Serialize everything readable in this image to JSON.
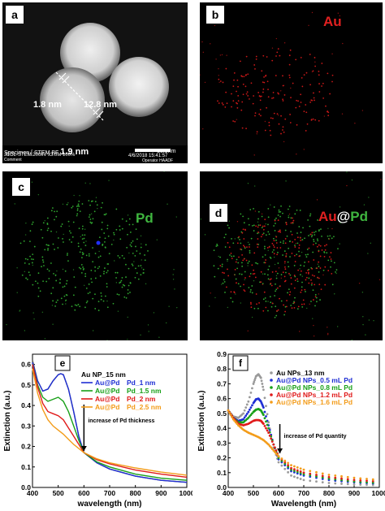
{
  "panel_a": {
    "label": "a",
    "measure_1": "1.8 nm",
    "measure_2": "12.8 nm",
    "measure_3": "1.9 nm",
    "info_line1": "Specimen [ STEM BF",
    "info_line2": "JEOL-STEM 200kV x3.0M 100%",
    "info_line3": "Comment",
    "scalebar": "10.0nm",
    "date": "4/6/2018 15:41:57",
    "operator": "Operator HAADF"
  },
  "panel_b": {
    "label": "b",
    "title": "Au",
    "color": "#e02020"
  },
  "panel_c": {
    "label": "c",
    "title": "Pd",
    "color": "#3fb53f"
  },
  "panel_d": {
    "label": "d",
    "title_au": "Au",
    "title_at": "@",
    "title_pd": "Pd"
  },
  "chart_data": [
    {
      "type": "line",
      "panel": "e",
      "xlabel": "wavelength (nm)",
      "ylabel": "Extinction (a.u.)",
      "xlim": [
        400,
        1000
      ],
      "ylim": [
        0,
        0.65
      ],
      "xticks": [
        "400",
        "500",
        "600",
        "700",
        "800",
        "900",
        "1000"
      ],
      "yticks": [
        "0.0",
        "0.1",
        "0.2",
        "0.3",
        "0.4",
        "0.5",
        "0.6"
      ],
      "annotation": "increase of Pd thickness",
      "series": [
        {
          "name": "Au NP_15 nm",
          "legend_parts": [
            "Au NP_15 nm"
          ],
          "color": "#555555",
          "x": [
            400,
            420,
            440,
            460,
            480,
            500,
            510,
            520,
            540,
            560,
            580,
            600,
            650,
            700,
            800,
            900,
            1000
          ],
          "y": [
            0.62,
            0.52,
            0.47,
            0.48,
            0.52,
            0.55,
            0.555,
            0.55,
            0.48,
            0.37,
            0.25,
            0.17,
            0.12,
            0.09,
            0.055,
            0.035,
            0.025
          ]
        },
        {
          "name": "Au@Pd Pd_1 nm",
          "legend_parts": [
            "Au@Pd",
            "Pd_1 nm"
          ],
          "color": "#1f2fd4",
          "x": [
            400,
            420,
            440,
            460,
            480,
            500,
            510,
            520,
            540,
            560,
            580,
            600,
            650,
            700,
            800,
            900,
            1000
          ],
          "y": [
            0.61,
            0.52,
            0.47,
            0.48,
            0.52,
            0.55,
            0.555,
            0.55,
            0.48,
            0.37,
            0.25,
            0.17,
            0.12,
            0.09,
            0.055,
            0.035,
            0.025
          ]
        },
        {
          "name": "Au@Pd Pd_1.5 nm",
          "legend_parts": [
            "Au@Pd",
            "Pd_1.5 nm"
          ],
          "color": "#18a018",
          "x": [
            400,
            420,
            440,
            460,
            480,
            500,
            520,
            540,
            560,
            580,
            600,
            650,
            700,
            800,
            900,
            1000
          ],
          "y": [
            0.6,
            0.5,
            0.44,
            0.42,
            0.43,
            0.44,
            0.42,
            0.37,
            0.3,
            0.23,
            0.17,
            0.125,
            0.1,
            0.065,
            0.045,
            0.035
          ]
        },
        {
          "name": "Au@Pd Pd_2 nm",
          "legend_parts": [
            "Au@Pd",
            "Pd_2 nm"
          ],
          "color": "#e01a1a",
          "x": [
            400,
            420,
            440,
            460,
            480,
            500,
            520,
            540,
            560,
            580,
            600,
            650,
            700,
            800,
            900,
            1000
          ],
          "y": [
            0.6,
            0.49,
            0.41,
            0.37,
            0.36,
            0.35,
            0.33,
            0.29,
            0.25,
            0.21,
            0.17,
            0.135,
            0.115,
            0.085,
            0.065,
            0.05
          ]
        },
        {
          "name": "Au@Pd Pd_2.5 nm",
          "legend_parts": [
            "Au@Pd",
            "Pd_2.5 nm"
          ],
          "color": "#f39c1a",
          "x": [
            400,
            420,
            440,
            460,
            480,
            500,
            520,
            540,
            560,
            580,
            600,
            650,
            700,
            800,
            900,
            1000
          ],
          "y": [
            0.58,
            0.46,
            0.38,
            0.33,
            0.3,
            0.28,
            0.26,
            0.235,
            0.21,
            0.19,
            0.17,
            0.14,
            0.12,
            0.095,
            0.075,
            0.06
          ]
        }
      ]
    },
    {
      "type": "scatter",
      "panel": "f",
      "xlabel": "Wavelength (nm)",
      "ylabel": "Extinction (a.u.)",
      "xlim": [
        400,
        1000
      ],
      "ylim": [
        0,
        0.9
      ],
      "xticks": [
        "400",
        "500",
        "600",
        "700",
        "800",
        "900",
        "1000"
      ],
      "yticks": [
        "0.0",
        "0.1",
        "0.2",
        "0.3",
        "0.4",
        "0.5",
        "0.6",
        "0.7",
        "0.8",
        "0.9"
      ],
      "annotation": "increase of Pd quantity",
      "series": [
        {
          "name": "Au NPs_13 nm",
          "color": "#9a9a9a",
          "x": [
            400,
            420,
            440,
            460,
            480,
            500,
            510,
            520,
            530,
            540,
            560,
            580,
            600,
            650,
            700,
            800,
            900,
            1000
          ],
          "y": [
            0.52,
            0.48,
            0.47,
            0.5,
            0.58,
            0.7,
            0.75,
            0.765,
            0.74,
            0.66,
            0.44,
            0.27,
            0.17,
            0.08,
            0.05,
            0.03,
            0.02,
            0.015
          ]
        },
        {
          "name": "Au@Pd NPs_0.5 mL Pd",
          "color": "#1f2fd4",
          "x": [
            400,
            420,
            440,
            460,
            480,
            500,
            510,
            520,
            530,
            540,
            560,
            580,
            600,
            650,
            700,
            800,
            900,
            1000
          ],
          "y": [
            0.52,
            0.47,
            0.45,
            0.46,
            0.51,
            0.57,
            0.595,
            0.6,
            0.58,
            0.54,
            0.42,
            0.29,
            0.19,
            0.11,
            0.08,
            0.05,
            0.035,
            0.025
          ]
        },
        {
          "name": "Au@Pd NPs_0.8 mL Pd",
          "color": "#18a018",
          "x": [
            400,
            420,
            440,
            460,
            480,
            500,
            510,
            520,
            530,
            540,
            560,
            580,
            600,
            650,
            700,
            800,
            900,
            1000
          ],
          "y": [
            0.52,
            0.47,
            0.44,
            0.44,
            0.47,
            0.51,
            0.525,
            0.53,
            0.52,
            0.49,
            0.4,
            0.29,
            0.2,
            0.12,
            0.09,
            0.06,
            0.04,
            0.03
          ]
        },
        {
          "name": "Au@Pd NPs_1.2 mL Pd",
          "color": "#e01a1a",
          "x": [
            400,
            420,
            440,
            460,
            480,
            500,
            510,
            520,
            530,
            540,
            560,
            580,
            600,
            650,
            700,
            800,
            900,
            1000
          ],
          "y": [
            0.52,
            0.47,
            0.43,
            0.42,
            0.43,
            0.45,
            0.455,
            0.455,
            0.45,
            0.43,
            0.37,
            0.29,
            0.21,
            0.13,
            0.1,
            0.07,
            0.05,
            0.04
          ]
        },
        {
          "name": "Au@Pd NPs_1.6 mL Pd",
          "color": "#f39c1a",
          "x": [
            400,
            420,
            440,
            460,
            480,
            500,
            520,
            540,
            560,
            580,
            600,
            650,
            700,
            800,
            900,
            1000
          ],
          "y": [
            0.52,
            0.46,
            0.42,
            0.39,
            0.37,
            0.355,
            0.34,
            0.32,
            0.29,
            0.25,
            0.21,
            0.15,
            0.12,
            0.085,
            0.065,
            0.05
          ]
        }
      ]
    }
  ]
}
